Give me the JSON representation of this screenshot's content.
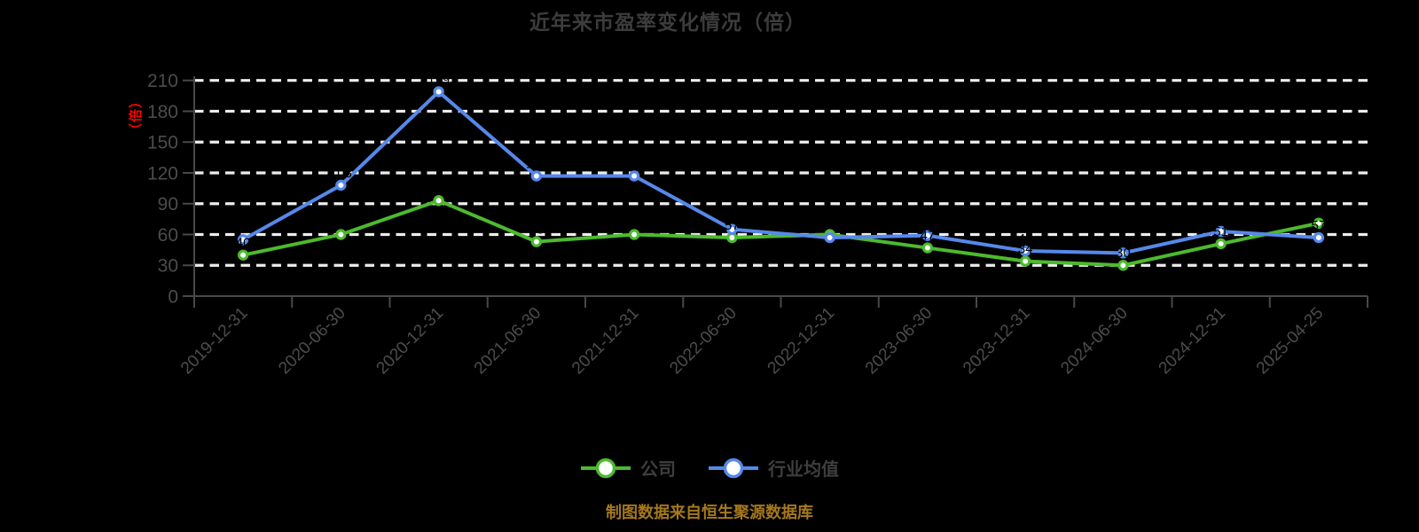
{
  "title": "近年来市盈率变化情况（倍）",
  "source_note": "制图数据来自恒生聚源数据库",
  "colors": {
    "background": "#000000",
    "title_text": "#3C3C3C",
    "axis_line": "#484848",
    "axis_label": "#4C4C4C",
    "gridline": "#EDEDED",
    "legend_text": "#3E3E3E",
    "source_text": "#A5781D",
    "y_unit_label": "#FF0000",
    "point_label": "#000000",
    "marker_fill": "#FFFFFF"
  },
  "chart_data": {
    "type": "line",
    "title": "近年来市盈率变化情况（倍）",
    "ylabel": "（倍）",
    "xlabel": "",
    "ylim": [
      0,
      210
    ],
    "y_interval": 30,
    "grid": "horizontal-dashed",
    "legend_position": "bottom-center",
    "x_label_rotation": 45,
    "point_labels": "rendered in black (invisible against black background)",
    "categories": [
      "2019-12-31",
      "2020-06-30",
      "2020-12-31",
      "2021-06-30",
      "2021-12-31",
      "2022-06-30",
      "2022-12-31",
      "2023-06-30",
      "2023-12-31",
      "2024-06-30",
      "2024-12-31",
      "2025-04-25"
    ],
    "series": [
      {
        "name": "公司",
        "color": "#4CBA2D",
        "values": [
          40,
          60,
          93,
          53,
          60,
          57,
          60,
          47,
          34,
          30,
          51,
          71
        ]
      },
      {
        "name": "行业均值",
        "color": "#5688EA",
        "values": [
          55,
          108,
          199,
          117,
          117,
          65,
          57,
          59,
          44,
          42,
          63,
          57
        ]
      }
    ]
  }
}
